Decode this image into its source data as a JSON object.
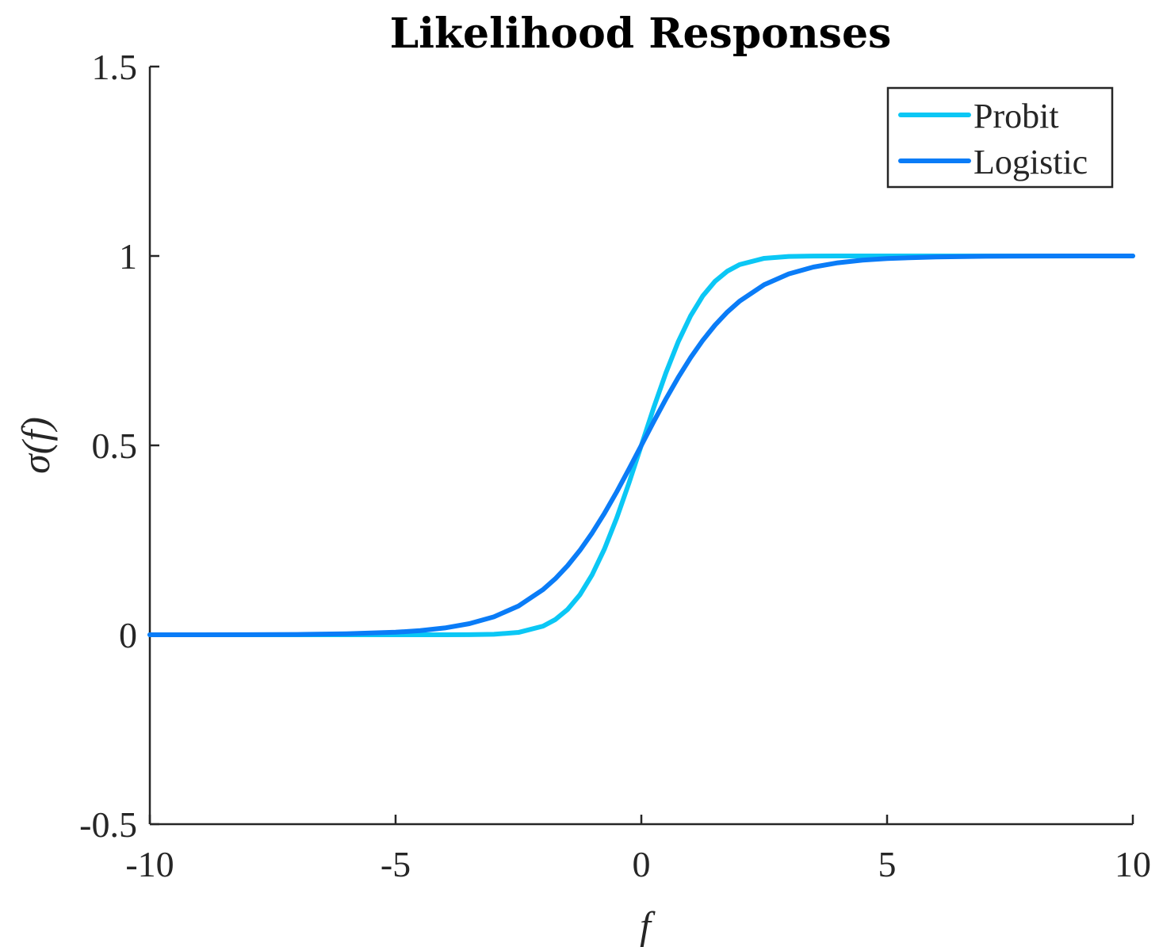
{
  "chart_data": {
    "type": "line",
    "title": "Likelihood Responses",
    "xlabel": "f",
    "ylabel": "σ(f)",
    "xlim": [
      -10,
      10
    ],
    "ylim": [
      -0.5,
      1.5
    ],
    "xticks": [
      -10,
      -5,
      0,
      5,
      10
    ],
    "xtick_labels": [
      "-10",
      "-5",
      "0",
      "5",
      "10"
    ],
    "yticks": [
      -0.5,
      0,
      0.5,
      1,
      1.5
    ],
    "ytick_labels": [
      "-0.5",
      "0",
      "0.5",
      "1",
      "1.5"
    ],
    "grid": false,
    "legend_position": "top-right",
    "x": [
      -10,
      -9,
      -8,
      -7,
      -6,
      -5,
      -4.5,
      -4,
      -3.5,
      -3,
      -2.5,
      -2,
      -1.75,
      -1.5,
      -1.25,
      -1,
      -0.75,
      -0.5,
      -0.25,
      0,
      0.25,
      0.5,
      0.75,
      1,
      1.25,
      1.5,
      1.75,
      2,
      2.5,
      3,
      3.5,
      4,
      4.5,
      5,
      6,
      7,
      8,
      9,
      10
    ],
    "series": [
      {
        "name": "Probit",
        "color": "#0bc7f5",
        "values": [
          0,
          0,
          0,
          0,
          0,
          0,
          0,
          0,
          0.0002,
          0.0013,
          0.0062,
          0.0228,
          0.0401,
          0.0668,
          0.1056,
          0.1587,
          0.2266,
          0.3085,
          0.4013,
          0.5,
          0.5987,
          0.6915,
          0.7734,
          0.8413,
          0.8944,
          0.9332,
          0.9599,
          0.9772,
          0.9938,
          0.9987,
          0.9998,
          1,
          1,
          1,
          1,
          1,
          1,
          1,
          1
        ]
      },
      {
        "name": "Logistic",
        "color": "#0a7cf7",
        "values": [
          0,
          0.0001,
          0.0003,
          0.0009,
          0.0025,
          0.0067,
          0.011,
          0.018,
          0.0293,
          0.0474,
          0.0759,
          0.1192,
          0.148,
          0.1824,
          0.2227,
          0.2689,
          0.3208,
          0.3775,
          0.4378,
          0.5,
          0.5622,
          0.6225,
          0.6792,
          0.7311,
          0.7773,
          0.8176,
          0.852,
          0.8808,
          0.9241,
          0.9526,
          0.9707,
          0.982,
          0.989,
          0.9933,
          0.9975,
          0.9991,
          0.9997,
          0.9999,
          1
        ]
      }
    ]
  }
}
